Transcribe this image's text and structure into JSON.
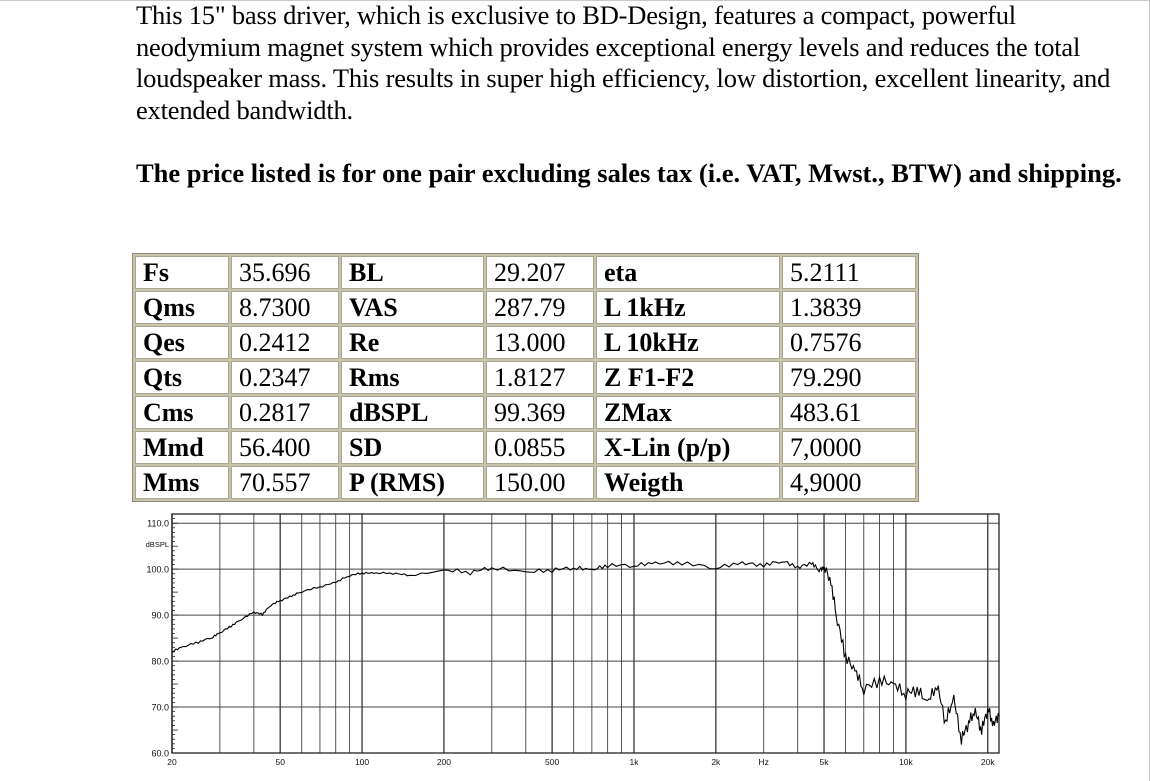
{
  "intro_text": "This 15\" bass driver, which is exclusive to BD-Design, features a compact, powerful neodymium magnet system which provides exceptional energy levels and reduces the total loudspeaker mass. This results in super high efficiency, low distortion, excellent linearity, and extended bandwidth.",
  "price_note": "The price listed is for one pair excluding sales tax (i.e. VAT, Mwst., BTW) and shipping.",
  "specs": [
    [
      {
        "name": "Fs",
        "value": "35.696"
      },
      {
        "name": "BL",
        "value": "29.207"
      },
      {
        "name": "eta",
        "value": "5.2111"
      }
    ],
    [
      {
        "name": "Qms",
        "value": "8.7300"
      },
      {
        "name": "VAS",
        "value": "287.79"
      },
      {
        "name": "L 1kHz",
        "value": "1.3839"
      }
    ],
    [
      {
        "name": "Qes",
        "value": "0.2412"
      },
      {
        "name": "Re",
        "value": "13.000"
      },
      {
        "name": "L 10kHz",
        "value": "0.7576"
      }
    ],
    [
      {
        "name": "Qts",
        "value": "0.2347"
      },
      {
        "name": "Rms",
        "value": "1.8127"
      },
      {
        "name": "Z F1-F2",
        "value": "79.290"
      }
    ],
    [
      {
        "name": "Cms",
        "value": "0.2817"
      },
      {
        "name": "dBSPL",
        "value": "99.369"
      },
      {
        "name": "ZMax",
        "value": "483.61"
      }
    ],
    [
      {
        "name": "Mmd",
        "value": "56.400"
      },
      {
        "name": "SD",
        "value": "0.0855"
      },
      {
        "name": "X-Lin (p/p)",
        "value": "7,0000"
      }
    ],
    [
      {
        "name": "Mms",
        "value": "70.557"
      },
      {
        "name": "P (RMS)",
        "value": "150.00"
      },
      {
        "name": "Weigth",
        "value": "4,9000"
      }
    ]
  ],
  "chart_data": {
    "type": "line",
    "x_scale": "log",
    "xlim": [
      20,
      22000
    ],
    "ylim": [
      60,
      112
    ],
    "y_ticks": [
      "110.0",
      "100.0",
      "90.0",
      "80.0",
      "70.0",
      "60.0"
    ],
    "ylabel": "dBSPL",
    "x_ticks": [
      {
        "value": 20,
        "label": "20"
      },
      {
        "value": 50,
        "label": "50"
      },
      {
        "value": 100,
        "label": "100"
      },
      {
        "value": 200,
        "label": "200"
      },
      {
        "value": 500,
        "label": "500"
      },
      {
        "value": 1000,
        "label": "1k"
      },
      {
        "value": 2000,
        "label": "2k"
      },
      {
        "value": 3000,
        "label": "Hz"
      },
      {
        "value": 5000,
        "label": "5k"
      },
      {
        "value": 10000,
        "label": "10k"
      },
      {
        "value": 20000,
        "label": "20k"
      }
    ],
    "grid": true,
    "series": [
      {
        "color": "#000000",
        "x": [
          20,
          22,
          25,
          28,
          30,
          33,
          36,
          40,
          43,
          46,
          50,
          55,
          60,
          70,
          80,
          90,
          100,
          110,
          130,
          150,
          200,
          250,
          300,
          400,
          500,
          600,
          700,
          800,
          1000,
          1200,
          1500,
          2000,
          2500,
          3000,
          3500,
          4000,
          4500,
          4800,
          5000,
          5300,
          5600,
          6000,
          6500,
          7000,
          8000,
          9000,
          10000,
          11000,
          12000,
          13000,
          14000,
          15000,
          16000,
          17000,
          18000,
          19000,
          20000,
          21000,
          22000
        ],
        "y": [
          82,
          83,
          84,
          85,
          86,
          87.5,
          89,
          90.5,
          90,
          92,
          93,
          94,
          95,
          96,
          97,
          98.5,
          99,
          99,
          99,
          98.5,
          99.5,
          99,
          100,
          99,
          99.5,
          100,
          99.5,
          100.5,
          100.5,
          101,
          101,
          100,
          101,
          100.5,
          101.5,
          100,
          101,
          99.5,
          100,
          96,
          88,
          80,
          77,
          73,
          75,
          74,
          72,
          73,
          70,
          74,
          66,
          71,
          62,
          66,
          68,
          64,
          69,
          65,
          68
        ]
      }
    ]
  }
}
